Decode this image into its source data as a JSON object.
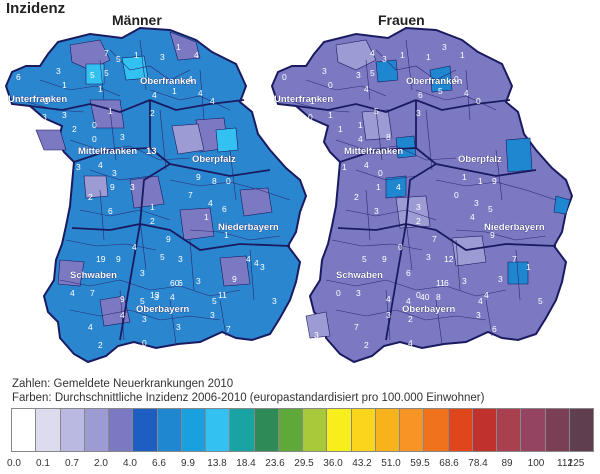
{
  "header": {
    "title": "Inzidenz"
  },
  "maps": [
    {
      "title": "Männer",
      "regions": [
        "Unterfranken",
        "Oberfranken",
        "Mittelfranken",
        "Oberpfalz",
        "Niederbayern",
        "Schwaben",
        "Oberbayern"
      ],
      "extra_labels": [
        "13"
      ],
      "counts": [
        "6",
        "3",
        "5",
        "1",
        "5",
        "1",
        "3",
        "3",
        "3",
        "2",
        "7",
        "5",
        "1",
        "3",
        "1",
        "4",
        "4",
        "1",
        "4",
        "4",
        "4",
        "2",
        "0",
        "1",
        "0",
        "3",
        "9",
        "8",
        "0",
        "6",
        "1",
        "1",
        "7",
        "4",
        "1",
        "2",
        "9",
        "4",
        "3",
        "3",
        "2",
        "9",
        "3",
        "6",
        "4",
        "5",
        "3",
        "6",
        "19",
        "9",
        "3",
        "9",
        "4",
        "5",
        "3",
        "4",
        "3",
        "5",
        "9",
        "4",
        "60",
        "3",
        "4",
        "7",
        "13",
        "11",
        "3",
        "7",
        "3",
        "3",
        "8",
        "4",
        "2",
        "0",
        "3",
        "4",
        "5",
        "4"
      ]
    },
    {
      "title": "Frauen",
      "regions": [
        "Unterfranken",
        "Oberfranken",
        "Mittelfranken",
        "Oberpfalz",
        "Niederbayern",
        "Schwaben",
        "Oberbayern"
      ],
      "extra_labels": [],
      "counts": [
        "0",
        "3",
        "3",
        "4",
        "5",
        "0",
        "1",
        "0",
        "1",
        "1",
        "4",
        "3",
        "1",
        "1",
        "3",
        "1",
        "0",
        "5",
        "4",
        "0",
        "6",
        "3",
        "1",
        "5",
        "4",
        "8",
        "1",
        "1",
        "9",
        "5",
        "4",
        "9",
        "0",
        "3",
        "3",
        "2",
        "7",
        "4",
        "1",
        "0",
        "2",
        "1",
        "4",
        "3",
        "0",
        "3",
        "12",
        "6",
        "5",
        "9",
        "6",
        "4",
        "3",
        "4",
        "40",
        "8",
        "3",
        "4",
        "3",
        "7",
        "11",
        "2",
        "0",
        "3",
        "0",
        "4",
        "3",
        "6",
        "1",
        "5",
        "3",
        "7",
        "2",
        "4"
      ]
    }
  ],
  "captions": {
    "zahlen": "Zahlen: Gemeldete Neuerkrankungen 2010",
    "farben": "Farben: Durchschnittliche Inzidenz 2006-2010 (europastandardisiert pro 100.000 Einwohner)"
  },
  "legend": {
    "colors": [
      "#ffffff",
      "#dddcef",
      "#bab9e2",
      "#9d9bd3",
      "#7c79c3",
      "#1c5ec2",
      "#1e87cf",
      "#1a9fdf",
      "#33c1f1",
      "#19a3a3",
      "#2e8b57",
      "#5fa83a",
      "#a8c93a",
      "#f7ee1c",
      "#fbd41c",
      "#f8b21c",
      "#f79426",
      "#f0721c",
      "#e0461c",
      "#c0302c",
      "#a8404f",
      "#944460",
      "#7b3f55",
      "#5f3f4f"
    ],
    "ticks": [
      "0.0",
      "0.1",
      "0.7",
      "2.0",
      "4.0",
      "6.6",
      "9.9",
      "13.8",
      "18.4",
      "23.6",
      "29.5",
      "36.0",
      "43.2",
      "51.0",
      "59.5",
      "68.6",
      "78.4",
      "89",
      "100",
      "112",
      "125"
    ]
  }
}
